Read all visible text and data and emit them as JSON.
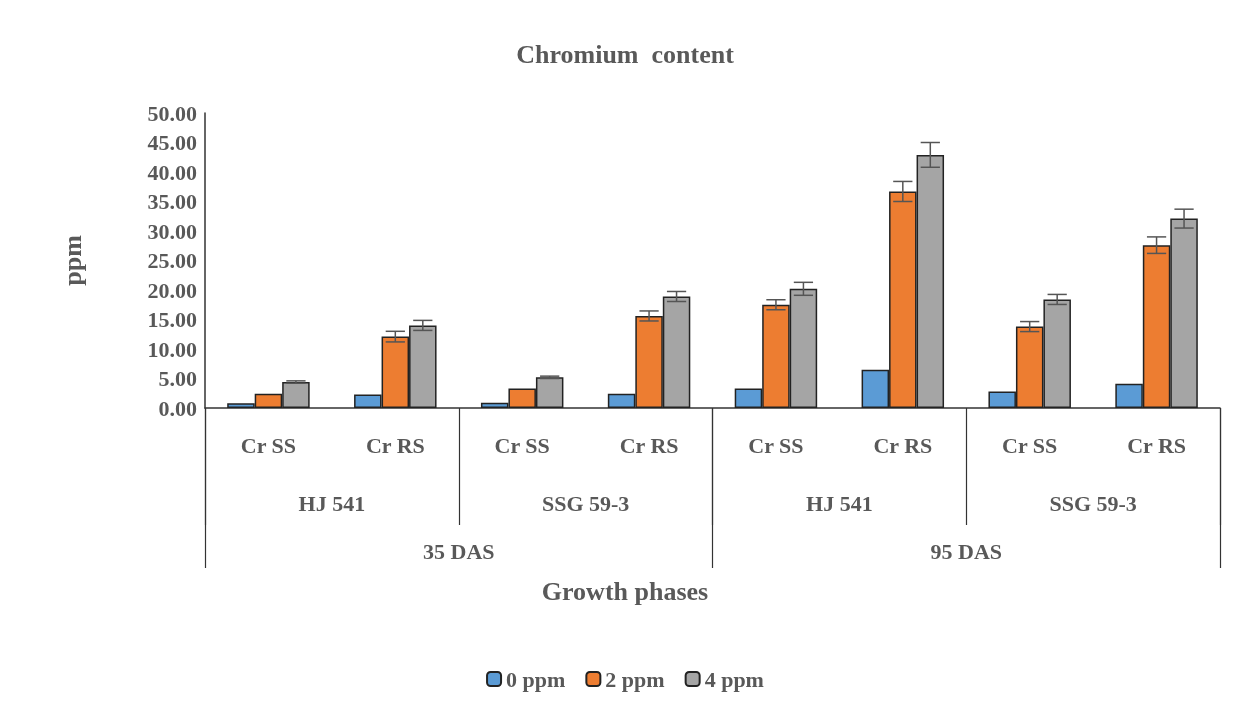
{
  "chart_data": {
    "type": "bar",
    "title": "Chromium  content",
    "xlabel": "Growth phases",
    "ylabel": "ppm",
    "categories": [
      "Cr SS",
      "Cr RS",
      "Cr SS",
      "Cr RS",
      "Cr SS",
      "Cr RS",
      "Cr SS",
      "Cr RS"
    ],
    "annotations": [
      "HJ 541",
      "SSG 59-3",
      "HJ 541",
      "SSG 59-3",
      "35 DAS",
      "95 DAS"
    ],
    "series": [
      {
        "name": "0 ppm",
        "color": "#5b9bd5",
        "values": [
          0.8,
          2.3,
          0.9,
          2.4,
          3.3,
          6.5,
          2.8,
          4.1
        ],
        "errors": [
          null,
          null,
          null,
          null,
          null,
          null,
          null,
          null
        ]
      },
      {
        "name": "2 ppm",
        "color": "#ed7d31",
        "values": [
          2.4,
          12.1,
          3.3,
          15.6,
          17.5,
          36.7,
          13.8,
          27.6
        ],
        "errors": [
          null,
          0.9,
          null,
          0.85,
          0.85,
          1.7,
          0.85,
          1.4
        ]
      },
      {
        "name": "4 ppm",
        "color": "#a5a5a5",
        "values": [
          4.4,
          14.0,
          5.2,
          18.9,
          20.2,
          42.9,
          18.4,
          32.1
        ],
        "errors": [
          0.2,
          0.85,
          0.2,
          0.85,
          1.1,
          2.1,
          0.85,
          1.6
        ]
      }
    ],
    "ylim": [
      0,
      50
    ],
    "yticks": [
      {
        "value": 0,
        "label": "0.00"
      },
      {
        "value": 5,
        "label": "5.00"
      },
      {
        "value": 10,
        "label": "10.00"
      },
      {
        "value": 15,
        "label": "15.00"
      },
      {
        "value": 20,
        "label": "20.00"
      },
      {
        "value": 25,
        "label": "25.00"
      },
      {
        "value": 30,
        "label": "30.00"
      },
      {
        "value": 35,
        "label": "35.00"
      },
      {
        "value": 40,
        "label": "40.00"
      },
      {
        "value": 45,
        "label": "45.00"
      },
      {
        "value": 50,
        "label": "50.00"
      }
    ],
    "grid": false,
    "legend": "bottom"
  }
}
